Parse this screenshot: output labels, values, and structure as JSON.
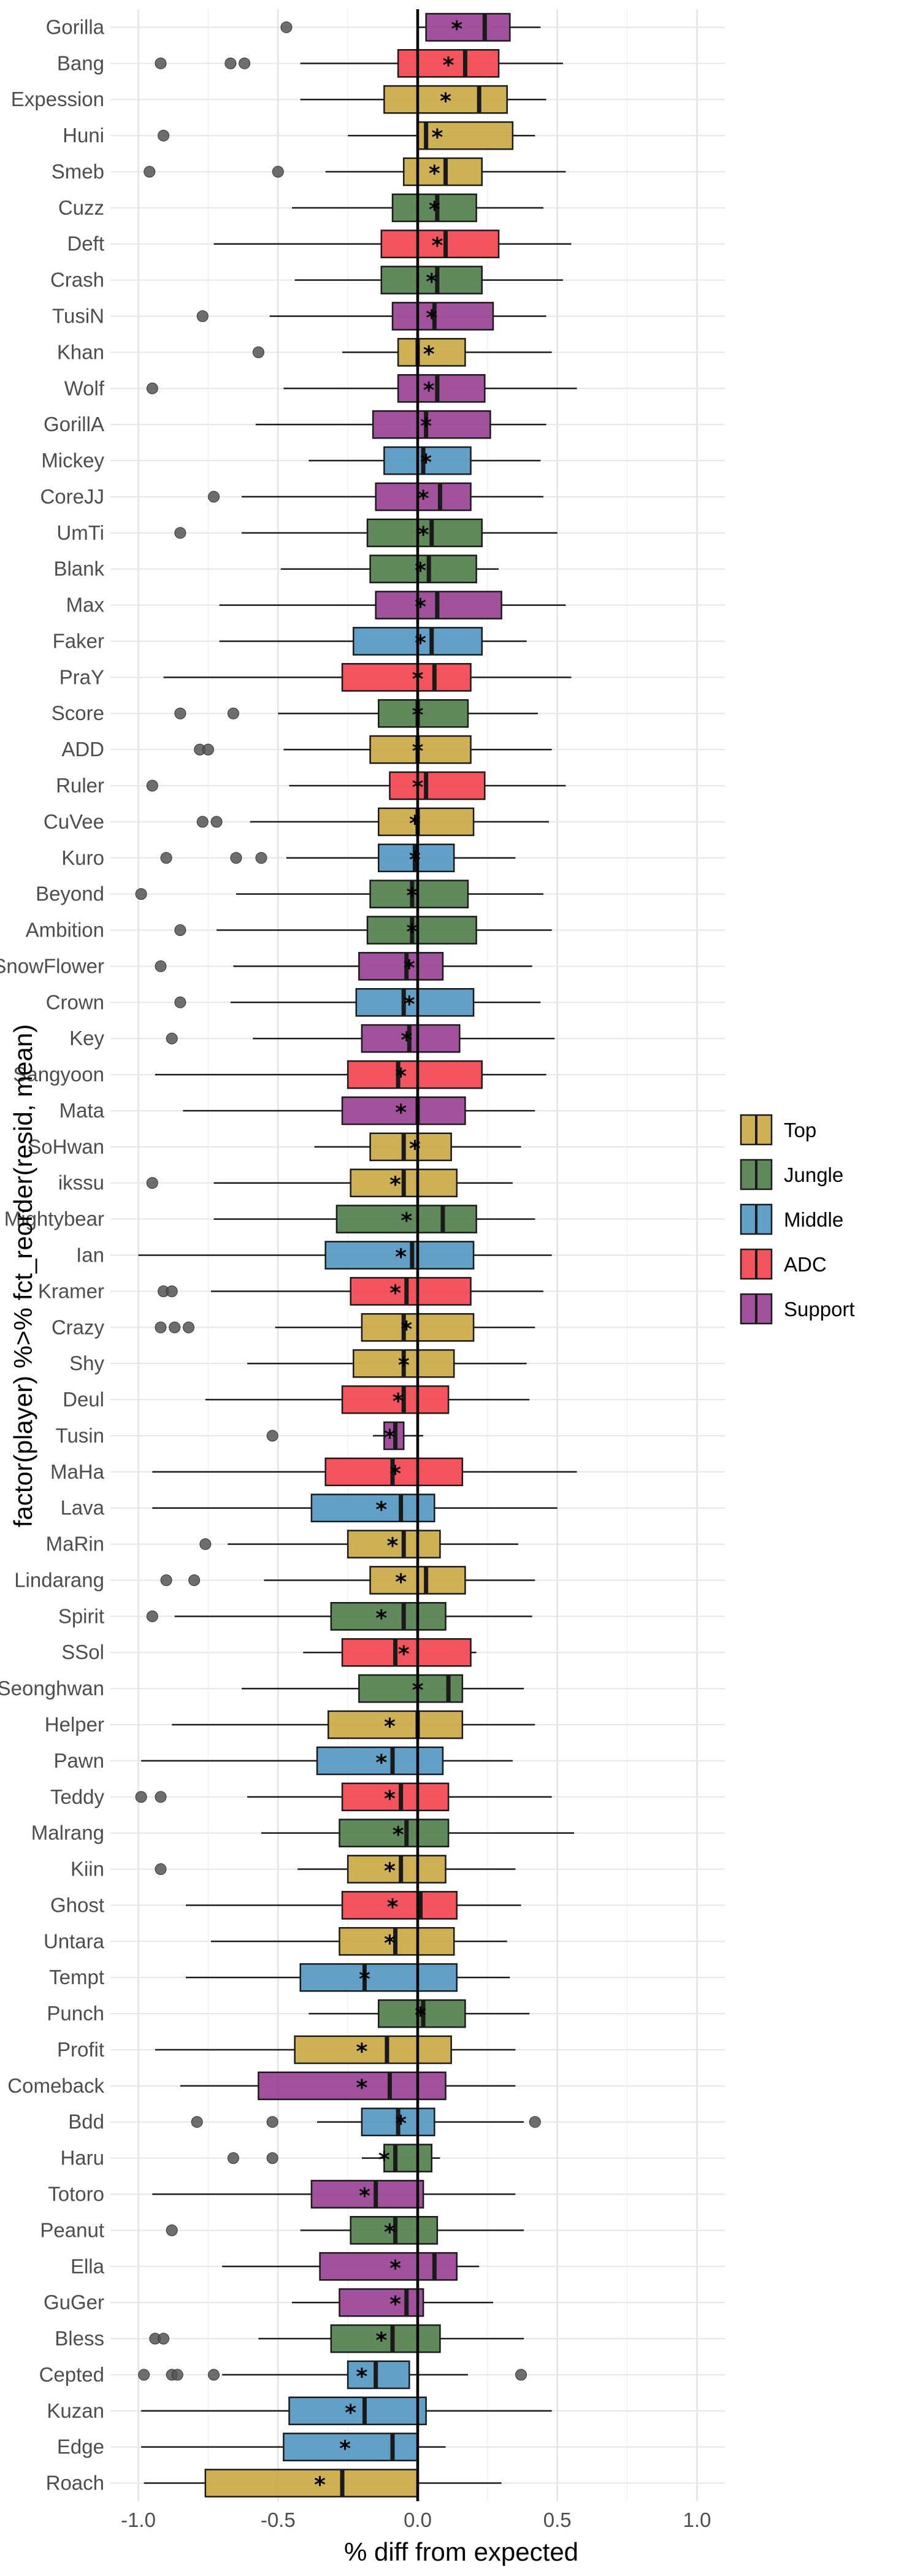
{
  "chart_data": {
    "type": "boxplot",
    "orientation": "horizontal",
    "xlabel": "% diff from expected",
    "ylabel": "factor(player) %>% fct_reorder(resid, mean)",
    "xlim": [
      -1.1,
      1.1
    ],
    "x_ticks": [
      "-1.0",
      "-0.5",
      "0.0",
      "0.5",
      "1.0"
    ],
    "x_tick_values": [
      -1.0,
      -0.5,
      0.0,
      0.5,
      1.0
    ],
    "grid": true,
    "reference_line_x": 0,
    "legend_position": "right",
    "roles": [
      {
        "name": "Top",
        "color": "#C8A63E"
      },
      {
        "name": "Jungle",
        "color": "#4A7A45"
      },
      {
        "name": "Middle",
        "color": "#4D93C0"
      },
      {
        "name": "ADC",
        "color": "#F23C48"
      },
      {
        "name": "Support",
        "color": "#953A8E"
      }
    ],
    "players": [
      {
        "name": "Gorilla",
        "role": "Support",
        "q1": 0.03,
        "median": 0.24,
        "q3": 0.33,
        "mean": 0.14,
        "wlo": 0.0,
        "whi": 0.44,
        "outliers": [
          -0.47
        ]
      },
      {
        "name": "Bang",
        "role": "ADC",
        "q1": -0.07,
        "median": 0.17,
        "q3": 0.29,
        "mean": 0.11,
        "wlo": -0.42,
        "whi": 0.52,
        "outliers": [
          -0.92,
          -0.67,
          -0.62
        ]
      },
      {
        "name": "Expession",
        "role": "Top",
        "q1": -0.12,
        "median": 0.22,
        "q3": 0.32,
        "mean": 0.1,
        "wlo": -0.42,
        "whi": 0.46,
        "outliers": []
      },
      {
        "name": "Huni",
        "role": "Top",
        "q1": 0.0,
        "median": 0.03,
        "q3": 0.34,
        "mean": 0.07,
        "wlo": -0.25,
        "whi": 0.42,
        "outliers": [
          -0.91
        ]
      },
      {
        "name": "Smeb",
        "role": "Top",
        "q1": -0.05,
        "median": 0.1,
        "q3": 0.23,
        "mean": 0.06,
        "wlo": -0.33,
        "whi": 0.53,
        "outliers": [
          -0.96,
          -0.5
        ]
      },
      {
        "name": "Cuzz",
        "role": "Jungle",
        "q1": -0.09,
        "median": 0.07,
        "q3": 0.21,
        "mean": 0.06,
        "wlo": -0.45,
        "whi": 0.45,
        "outliers": []
      },
      {
        "name": "Deft",
        "role": "ADC",
        "q1": -0.13,
        "median": 0.1,
        "q3": 0.29,
        "mean": 0.07,
        "wlo": -0.73,
        "whi": 0.55,
        "outliers": []
      },
      {
        "name": "Crash",
        "role": "Jungle",
        "q1": -0.13,
        "median": 0.07,
        "q3": 0.23,
        "mean": 0.05,
        "wlo": -0.44,
        "whi": 0.52,
        "outliers": []
      },
      {
        "name": "TusiN",
        "role": "Support",
        "q1": -0.09,
        "median": 0.06,
        "q3": 0.27,
        "mean": 0.05,
        "wlo": -0.53,
        "whi": 0.46,
        "outliers": [
          -0.77
        ]
      },
      {
        "name": "Khan",
        "role": "Top",
        "q1": -0.07,
        "median": 0.0,
        "q3": 0.17,
        "mean": 0.04,
        "wlo": -0.27,
        "whi": 0.48,
        "outliers": [
          -0.57
        ]
      },
      {
        "name": "Wolf",
        "role": "Support",
        "q1": -0.07,
        "median": 0.07,
        "q3": 0.24,
        "mean": 0.04,
        "wlo": -0.48,
        "whi": 0.57,
        "outliers": [
          -0.95
        ]
      },
      {
        "name": "GorillA",
        "role": "Support",
        "q1": -0.16,
        "median": 0.03,
        "q3": 0.26,
        "mean": 0.03,
        "wlo": -0.58,
        "whi": 0.46,
        "outliers": []
      },
      {
        "name": "Mickey",
        "role": "Middle",
        "q1": -0.12,
        "median": 0.02,
        "q3": 0.19,
        "mean": 0.03,
        "wlo": -0.39,
        "whi": 0.44,
        "outliers": []
      },
      {
        "name": "CoreJJ",
        "role": "Support",
        "q1": -0.15,
        "median": 0.08,
        "q3": 0.19,
        "mean": 0.02,
        "wlo": -0.63,
        "whi": 0.45,
        "outliers": [
          -0.73
        ]
      },
      {
        "name": "UmTi",
        "role": "Jungle",
        "q1": -0.18,
        "median": 0.05,
        "q3": 0.23,
        "mean": 0.02,
        "wlo": -0.63,
        "whi": 0.5,
        "outliers": [
          -0.85
        ]
      },
      {
        "name": "Blank",
        "role": "Jungle",
        "q1": -0.17,
        "median": 0.04,
        "q3": 0.21,
        "mean": 0.01,
        "wlo": -0.49,
        "whi": 0.29,
        "outliers": []
      },
      {
        "name": "Max",
        "role": "Support",
        "q1": -0.15,
        "median": 0.07,
        "q3": 0.3,
        "mean": 0.01,
        "wlo": -0.71,
        "whi": 0.53,
        "outliers": []
      },
      {
        "name": "Faker",
        "role": "Middle",
        "q1": -0.23,
        "median": 0.05,
        "q3": 0.23,
        "mean": 0.01,
        "wlo": -0.71,
        "whi": 0.39,
        "outliers": []
      },
      {
        "name": "PraY",
        "role": "ADC",
        "q1": -0.27,
        "median": 0.06,
        "q3": 0.19,
        "mean": 0.0,
        "wlo": -0.91,
        "whi": 0.55,
        "outliers": []
      },
      {
        "name": "Score",
        "role": "Jungle",
        "q1": -0.14,
        "median": 0.0,
        "q3": 0.18,
        "mean": 0.0,
        "wlo": -0.5,
        "whi": 0.43,
        "outliers": [
          -0.85,
          -0.66
        ]
      },
      {
        "name": "ADD",
        "role": "Top",
        "q1": -0.17,
        "median": 0.0,
        "q3": 0.19,
        "mean": 0.0,
        "wlo": -0.48,
        "whi": 0.48,
        "outliers": [
          -0.78,
          -0.75
        ]
      },
      {
        "name": "Ruler",
        "role": "ADC",
        "q1": -0.1,
        "median": 0.03,
        "q3": 0.24,
        "mean": 0.0,
        "wlo": -0.46,
        "whi": 0.53,
        "outliers": [
          -0.95
        ]
      },
      {
        "name": "CuVee",
        "role": "Top",
        "q1": -0.14,
        "median": 0.0,
        "q3": 0.2,
        "mean": -0.01,
        "wlo": -0.6,
        "whi": 0.47,
        "outliers": [
          -0.77,
          -0.72
        ]
      },
      {
        "name": "Kuro",
        "role": "Middle",
        "q1": -0.14,
        "median": -0.01,
        "q3": 0.13,
        "mean": -0.01,
        "wlo": -0.47,
        "whi": 0.35,
        "outliers": [
          -0.9,
          -0.65,
          -0.56
        ]
      },
      {
        "name": "Beyond",
        "role": "Jungle",
        "q1": -0.17,
        "median": -0.02,
        "q3": 0.18,
        "mean": -0.02,
        "wlo": -0.65,
        "whi": 0.45,
        "outliers": [
          -0.99
        ]
      },
      {
        "name": "Ambition",
        "role": "Jungle",
        "q1": -0.18,
        "median": -0.02,
        "q3": 0.21,
        "mean": -0.02,
        "wlo": -0.72,
        "whi": 0.48,
        "outliers": [
          -0.85
        ]
      },
      {
        "name": "SnowFlower",
        "role": "Support",
        "q1": -0.21,
        "median": -0.04,
        "q3": 0.09,
        "mean": -0.03,
        "wlo": -0.66,
        "whi": 0.41,
        "outliers": [
          -0.92
        ]
      },
      {
        "name": "Crown",
        "role": "Middle",
        "q1": -0.22,
        "median": -0.05,
        "q3": 0.2,
        "mean": -0.03,
        "wlo": -0.67,
        "whi": 0.44,
        "outliers": [
          -0.85
        ]
      },
      {
        "name": "Key",
        "role": "Support",
        "q1": -0.2,
        "median": -0.03,
        "q3": 0.15,
        "mean": -0.04,
        "wlo": -0.59,
        "whi": 0.49,
        "outliers": [
          -0.88
        ]
      },
      {
        "name": "Sangyoon",
        "role": "ADC",
        "q1": -0.25,
        "median": -0.07,
        "q3": 0.23,
        "mean": -0.06,
        "wlo": -0.94,
        "whi": 0.46,
        "outliers": []
      },
      {
        "name": "Mata",
        "role": "Support",
        "q1": -0.27,
        "median": 0.0,
        "q3": 0.17,
        "mean": -0.06,
        "wlo": -0.84,
        "whi": 0.42,
        "outliers": []
      },
      {
        "name": "SoHwan",
        "role": "Top",
        "q1": -0.17,
        "median": -0.05,
        "q3": 0.12,
        "mean": -0.01,
        "wlo": -0.37,
        "whi": 0.37,
        "outliers": []
      },
      {
        "name": "ikssu",
        "role": "Top",
        "q1": -0.24,
        "median": -0.05,
        "q3": 0.14,
        "mean": -0.08,
        "wlo": -0.73,
        "whi": 0.34,
        "outliers": [
          -0.95
        ]
      },
      {
        "name": "Mightybear",
        "role": "Jungle",
        "q1": -0.29,
        "median": 0.09,
        "q3": 0.21,
        "mean": -0.04,
        "wlo": -0.73,
        "whi": 0.42,
        "outliers": []
      },
      {
        "name": "Ian",
        "role": "Middle",
        "q1": -0.33,
        "median": -0.02,
        "q3": 0.2,
        "mean": -0.06,
        "wlo": -1.0,
        "whi": 0.48,
        "outliers": []
      },
      {
        "name": "Kramer",
        "role": "ADC",
        "q1": -0.24,
        "median": -0.04,
        "q3": 0.19,
        "mean": -0.08,
        "wlo": -0.74,
        "whi": 0.45,
        "outliers": [
          -0.91,
          -0.88
        ]
      },
      {
        "name": "Crazy",
        "role": "Top",
        "q1": -0.2,
        "median": -0.05,
        "q3": 0.2,
        "mean": -0.04,
        "wlo": -0.51,
        "whi": 0.42,
        "outliers": [
          -0.92,
          -0.87,
          -0.82
        ]
      },
      {
        "name": "Shy",
        "role": "Top",
        "q1": -0.23,
        "median": -0.05,
        "q3": 0.13,
        "mean": -0.05,
        "wlo": -0.61,
        "whi": 0.39,
        "outliers": []
      },
      {
        "name": "Deul",
        "role": "ADC",
        "q1": -0.27,
        "median": -0.05,
        "q3": 0.11,
        "mean": -0.07,
        "wlo": -0.76,
        "whi": 0.4,
        "outliers": []
      },
      {
        "name": "Tusin",
        "role": "Support",
        "q1": -0.12,
        "median": -0.08,
        "q3": -0.05,
        "mean": -0.1,
        "wlo": -0.16,
        "whi": 0.02,
        "outliers": [
          -0.52
        ]
      },
      {
        "name": "MaHa",
        "role": "ADC",
        "q1": -0.33,
        "median": -0.09,
        "q3": 0.16,
        "mean": -0.08,
        "wlo": -0.95,
        "whi": 0.57,
        "outliers": []
      },
      {
        "name": "Lava",
        "role": "Middle",
        "q1": -0.38,
        "median": -0.06,
        "q3": 0.06,
        "mean": -0.13,
        "wlo": -0.95,
        "whi": 0.5,
        "outliers": []
      },
      {
        "name": "MaRin",
        "role": "Top",
        "q1": -0.25,
        "median": -0.05,
        "q3": 0.08,
        "mean": -0.09,
        "wlo": -0.68,
        "whi": 0.36,
        "outliers": [
          -0.76
        ]
      },
      {
        "name": "Lindarang",
        "role": "Top",
        "q1": -0.17,
        "median": 0.03,
        "q3": 0.17,
        "mean": -0.06,
        "wlo": -0.55,
        "whi": 0.42,
        "outliers": [
          -0.9,
          -0.8
        ]
      },
      {
        "name": "Spirit",
        "role": "Jungle",
        "q1": -0.31,
        "median": -0.05,
        "q3": 0.1,
        "mean": -0.13,
        "wlo": -0.87,
        "whi": 0.41,
        "outliers": [
          -0.95
        ]
      },
      {
        "name": "SSol",
        "role": "ADC",
        "q1": -0.27,
        "median": -0.08,
        "q3": 0.19,
        "mean": -0.05,
        "wlo": -0.41,
        "whi": 0.21,
        "outliers": []
      },
      {
        "name": "Seonghwan",
        "role": "Jungle",
        "q1": -0.21,
        "median": 0.11,
        "q3": 0.16,
        "mean": 0.0,
        "wlo": -0.63,
        "whi": 0.38,
        "outliers": []
      },
      {
        "name": "Helper",
        "role": "Top",
        "q1": -0.32,
        "median": 0.0,
        "q3": 0.16,
        "mean": -0.1,
        "wlo": -0.88,
        "whi": 0.42,
        "outliers": []
      },
      {
        "name": "Pawn",
        "role": "Middle",
        "q1": -0.36,
        "median": -0.09,
        "q3": 0.09,
        "mean": -0.13,
        "wlo": -0.99,
        "whi": 0.34,
        "outliers": []
      },
      {
        "name": "Teddy",
        "role": "ADC",
        "q1": -0.27,
        "median": -0.06,
        "q3": 0.11,
        "mean": -0.1,
        "wlo": -0.61,
        "whi": 0.48,
        "outliers": [
          -0.99,
          -0.92
        ]
      },
      {
        "name": "Malrang",
        "role": "Jungle",
        "q1": -0.28,
        "median": -0.04,
        "q3": 0.11,
        "mean": -0.07,
        "wlo": -0.56,
        "whi": 0.56,
        "outliers": []
      },
      {
        "name": "Kiin",
        "role": "Top",
        "q1": -0.25,
        "median": -0.06,
        "q3": 0.1,
        "mean": -0.1,
        "wlo": -0.43,
        "whi": 0.35,
        "outliers": [
          -0.92
        ]
      },
      {
        "name": "Ghost",
        "role": "ADC",
        "q1": -0.27,
        "median": 0.01,
        "q3": 0.14,
        "mean": -0.09,
        "wlo": -0.83,
        "whi": 0.37,
        "outliers": []
      },
      {
        "name": "Untara",
        "role": "Top",
        "q1": -0.28,
        "median": -0.08,
        "q3": 0.13,
        "mean": -0.1,
        "wlo": -0.74,
        "whi": 0.32,
        "outliers": []
      },
      {
        "name": "Tempt",
        "role": "Middle",
        "q1": -0.42,
        "median": -0.19,
        "q3": 0.14,
        "mean": -0.19,
        "wlo": -0.83,
        "whi": 0.33,
        "outliers": []
      },
      {
        "name": "Punch",
        "role": "Jungle",
        "q1": -0.14,
        "median": 0.02,
        "q3": 0.17,
        "mean": 0.01,
        "wlo": -0.39,
        "whi": 0.4,
        "outliers": []
      },
      {
        "name": "Profit",
        "role": "Top",
        "q1": -0.44,
        "median": -0.11,
        "q3": 0.12,
        "mean": -0.2,
        "wlo": -0.94,
        "whi": 0.35,
        "outliers": []
      },
      {
        "name": "Comeback",
        "role": "Support",
        "q1": -0.57,
        "median": -0.1,
        "q3": 0.1,
        "mean": -0.2,
        "wlo": -0.85,
        "whi": 0.35,
        "outliers": []
      },
      {
        "name": "Bdd",
        "role": "Middle",
        "q1": -0.2,
        "median": -0.07,
        "q3": 0.06,
        "mean": -0.06,
        "wlo": -0.36,
        "whi": 0.38,
        "outliers": [
          -0.79,
          -0.52,
          0.42
        ]
      },
      {
        "name": "Haru",
        "role": "Jungle",
        "q1": -0.12,
        "median": -0.08,
        "q3": 0.05,
        "mean": -0.12,
        "wlo": -0.2,
        "whi": 0.08,
        "outliers": [
          -0.66,
          -0.52
        ]
      },
      {
        "name": "Totoro",
        "role": "Support",
        "q1": -0.38,
        "median": -0.15,
        "q3": 0.02,
        "mean": -0.19,
        "wlo": -0.95,
        "whi": 0.35,
        "outliers": []
      },
      {
        "name": "Peanut",
        "role": "Jungle",
        "q1": -0.24,
        "median": -0.08,
        "q3": 0.07,
        "mean": -0.1,
        "wlo": -0.42,
        "whi": 0.38,
        "outliers": [
          -0.88
        ]
      },
      {
        "name": "Ella",
        "role": "Support",
        "q1": -0.35,
        "median": 0.06,
        "q3": 0.14,
        "mean": -0.08,
        "wlo": -0.7,
        "whi": 0.22,
        "outliers": []
      },
      {
        "name": "GuGer",
        "role": "Support",
        "q1": -0.28,
        "median": -0.04,
        "q3": 0.02,
        "mean": -0.08,
        "wlo": -0.45,
        "whi": 0.27,
        "outliers": []
      },
      {
        "name": "Bless",
        "role": "Jungle",
        "q1": -0.31,
        "median": -0.09,
        "q3": 0.08,
        "mean": -0.13,
        "wlo": -0.57,
        "whi": 0.38,
        "outliers": [
          -0.94,
          -0.91
        ]
      },
      {
        "name": "Cepted",
        "role": "Middle",
        "q1": -0.25,
        "median": -0.15,
        "q3": -0.03,
        "mean": -0.2,
        "wlo": -0.7,
        "whi": 0.18,
        "outliers": [
          -0.98,
          -0.88,
          -0.86,
          -0.73,
          0.37
        ]
      },
      {
        "name": "Kuzan",
        "role": "Middle",
        "q1": -0.46,
        "median": -0.19,
        "q3": 0.03,
        "mean": -0.24,
        "wlo": -0.99,
        "whi": 0.48,
        "outliers": []
      },
      {
        "name": "Edge",
        "role": "Middle",
        "q1": -0.48,
        "median": -0.09,
        "q3": 0.0,
        "mean": -0.26,
        "wlo": -0.99,
        "whi": 0.1,
        "outliers": []
      },
      {
        "name": "Roach",
        "role": "Top",
        "q1": -0.76,
        "median": -0.27,
        "q3": 0.0,
        "mean": -0.35,
        "wlo": -0.98,
        "whi": 0.3,
        "outliers": []
      }
    ]
  }
}
